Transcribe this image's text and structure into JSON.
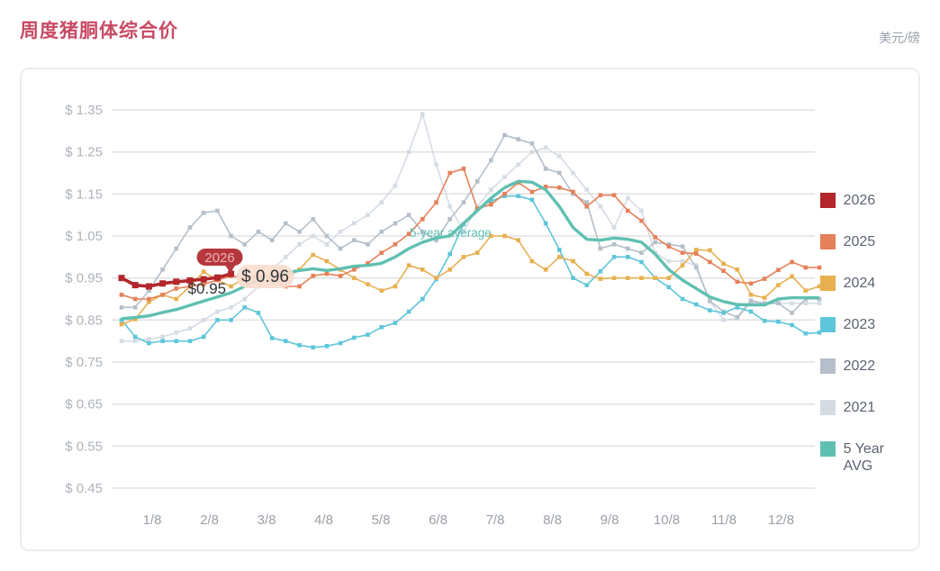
{
  "page": {
    "title": "周度猪胴体综合价",
    "unit": "美元/磅",
    "title_color": "#c84a64",
    "unit_color": "#9aa3ad"
  },
  "chart_data": {
    "type": "line",
    "title": "周度猪胴体综合价",
    "ylabel": "美元/磅",
    "ylim": [
      0.45,
      1.35
    ],
    "ytick_labels": [
      "$ 1.35",
      "$ 1.25",
      "$ 1.15",
      "$ 1.05",
      "$ 0.95",
      "$ 0.85",
      "$ 0.75",
      "$ 0.65",
      "$ 0.55",
      "$ 0.45"
    ],
    "ytick_values": [
      1.35,
      1.25,
      1.15,
      1.05,
      0.95,
      0.85,
      0.75,
      0.65,
      0.55,
      0.45
    ],
    "xtick_labels": [
      "1/8",
      "2/8",
      "3/8",
      "4/8",
      "5/8",
      "6/8",
      "7/8",
      "8/8",
      "9/8",
      "10/8",
      "11/8",
      "12/8"
    ],
    "grid": true,
    "legend_position": "right",
    "weeks": 52,
    "draw_order": [
      "2021",
      "2022",
      "2023",
      "2024",
      "2025",
      "5 Year AVG",
      "2026"
    ],
    "series": [
      {
        "name": "2026",
        "color": "#b2262c",
        "values": [
          0.95,
          0.933,
          0.93,
          0.937,
          0.941,
          0.944,
          0.947,
          0.951,
          0.96
        ]
      },
      {
        "name": "2025",
        "color": "#e5815a",
        "values": [
          0.91,
          0.9,
          0.9,
          0.91,
          0.925,
          0.93,
          0.935,
          0.945,
          0.955,
          0.95,
          0.955,
          0.95,
          0.93,
          0.93,
          0.955,
          0.96,
          0.955,
          0.97,
          0.985,
          1.01,
          1.03,
          1.055,
          1.09,
          1.13,
          1.2,
          1.21,
          1.115,
          1.125,
          1.15,
          1.177,
          1.155,
          1.167,
          1.165,
          1.155,
          1.12,
          1.147,
          1.147,
          1.11,
          1.086,
          1.047,
          1.025,
          1.01,
          1.008,
          0.988,
          0.967,
          0.941,
          0.937,
          0.948,
          0.969,
          0.988,
          0.975,
          0.975
        ]
      },
      {
        "name": "2024",
        "color": "#e8b050",
        "values": [
          0.84,
          0.852,
          0.893,
          0.91,
          0.9,
          0.93,
          0.965,
          0.945,
          0.93,
          0.95,
          0.96,
          0.94,
          0.95,
          0.97,
          1.005,
          0.99,
          0.97,
          0.95,
          0.935,
          0.92,
          0.93,
          0.98,
          0.97,
          0.95,
          0.97,
          1.0,
          1.01,
          1.05,
          1.05,
          1.04,
          0.99,
          0.97,
          1.0,
          0.99,
          0.96,
          0.948,
          0.95,
          0.95,
          0.95,
          0.95,
          0.95,
          0.98,
          1.017,
          1.016,
          0.984,
          0.97,
          0.91,
          0.903,
          0.933,
          0.954,
          0.92,
          0.93
        ]
      },
      {
        "name": "2023",
        "color": "#5ec6da",
        "values": [
          0.85,
          0.81,
          0.795,
          0.8,
          0.8,
          0.8,
          0.81,
          0.85,
          0.85,
          0.88,
          0.867,
          0.807,
          0.8,
          0.79,
          0.785,
          0.788,
          0.795,
          0.808,
          0.815,
          0.833,
          0.843,
          0.87,
          0.9,
          0.947,
          1.007,
          1.078,
          1.115,
          1.133,
          1.145,
          1.145,
          1.136,
          1.08,
          1.017,
          0.95,
          0.933,
          0.966,
          1.0,
          1.0,
          0.988,
          0.95,
          0.928,
          0.9,
          0.887,
          0.873,
          0.867,
          0.88,
          0.87,
          0.848,
          0.846,
          0.838,
          0.818,
          0.82
        ]
      },
      {
        "name": "2022",
        "color": "#b4bfca",
        "values": [
          0.88,
          0.88,
          0.92,
          0.97,
          1.02,
          1.07,
          1.105,
          1.11,
          1.05,
          1.03,
          1.06,
          1.04,
          1.08,
          1.06,
          1.09,
          1.05,
          1.02,
          1.04,
          1.03,
          1.06,
          1.08,
          1.1,
          1.06,
          1.04,
          1.09,
          1.13,
          1.18,
          1.23,
          1.29,
          1.28,
          1.27,
          1.21,
          1.2,
          1.15,
          1.13,
          1.02,
          1.03,
          1.02,
          1.01,
          1.035,
          1.03,
          1.025,
          0.975,
          0.895,
          0.87,
          0.857,
          0.896,
          0.89,
          0.89,
          0.867,
          0.9,
          0.9
        ]
      },
      {
        "name": "2021",
        "color": "#d5dce4",
        "values": [
          0.8,
          0.8,
          0.805,
          0.81,
          0.82,
          0.83,
          0.85,
          0.87,
          0.88,
          0.9,
          0.93,
          0.97,
          1.0,
          1.03,
          1.05,
          1.03,
          1.06,
          1.08,
          1.1,
          1.13,
          1.17,
          1.25,
          1.34,
          1.22,
          1.12,
          1.06,
          1.12,
          1.16,
          1.19,
          1.22,
          1.25,
          1.26,
          1.24,
          1.2,
          1.16,
          1.12,
          1.07,
          1.14,
          1.11,
          1.01,
          0.99,
          0.99,
          0.98,
          0.895,
          0.85,
          0.853,
          0.893,
          0.888,
          0.89,
          0.89,
          0.89,
          0.89
        ]
      },
      {
        "name": "5 Year AVG",
        "color": "#5fc0b1",
        "values": [
          0.853,
          0.856,
          0.86,
          0.868,
          0.875,
          0.885,
          0.895,
          0.905,
          0.915,
          0.93,
          0.945,
          0.955,
          0.962,
          0.968,
          0.972,
          0.968,
          0.972,
          0.978,
          0.98,
          0.985,
          1.0,
          1.02,
          1.035,
          1.045,
          1.05,
          1.08,
          1.11,
          1.14,
          1.165,
          1.18,
          1.178,
          1.16,
          1.12,
          1.07,
          1.042,
          1.04,
          1.045,
          1.042,
          1.035,
          1.007,
          0.97,
          0.945,
          0.925,
          0.905,
          0.894,
          0.887,
          0.886,
          0.886,
          0.9,
          0.903,
          0.903,
          0.903
        ]
      }
    ],
    "annotations": {
      "series_callout_label": "2026",
      "current_value_label": "$ 0.96",
      "reference_value_label": "$0.95",
      "avg_line_label": "5-year average",
      "callout_bg": "#b5383d",
      "callout_text_color": "#efb3b3",
      "value_pill_bg": "#f9ddcf",
      "value_text_color": "#30343a"
    }
  },
  "legend": {
    "items": [
      {
        "label": "2026",
        "color": "#b2262c"
      },
      {
        "label": "2025",
        "color": "#e5815a"
      },
      {
        "label": "2024",
        "color": "#e8b050"
      },
      {
        "label": "2023",
        "color": "#5ec6da"
      },
      {
        "label": "2022",
        "color": "#b4bfca"
      },
      {
        "label": "2021",
        "color": "#d5dce4"
      },
      {
        "label": "5 Year AVG",
        "color": "#5fc0b1"
      }
    ]
  }
}
